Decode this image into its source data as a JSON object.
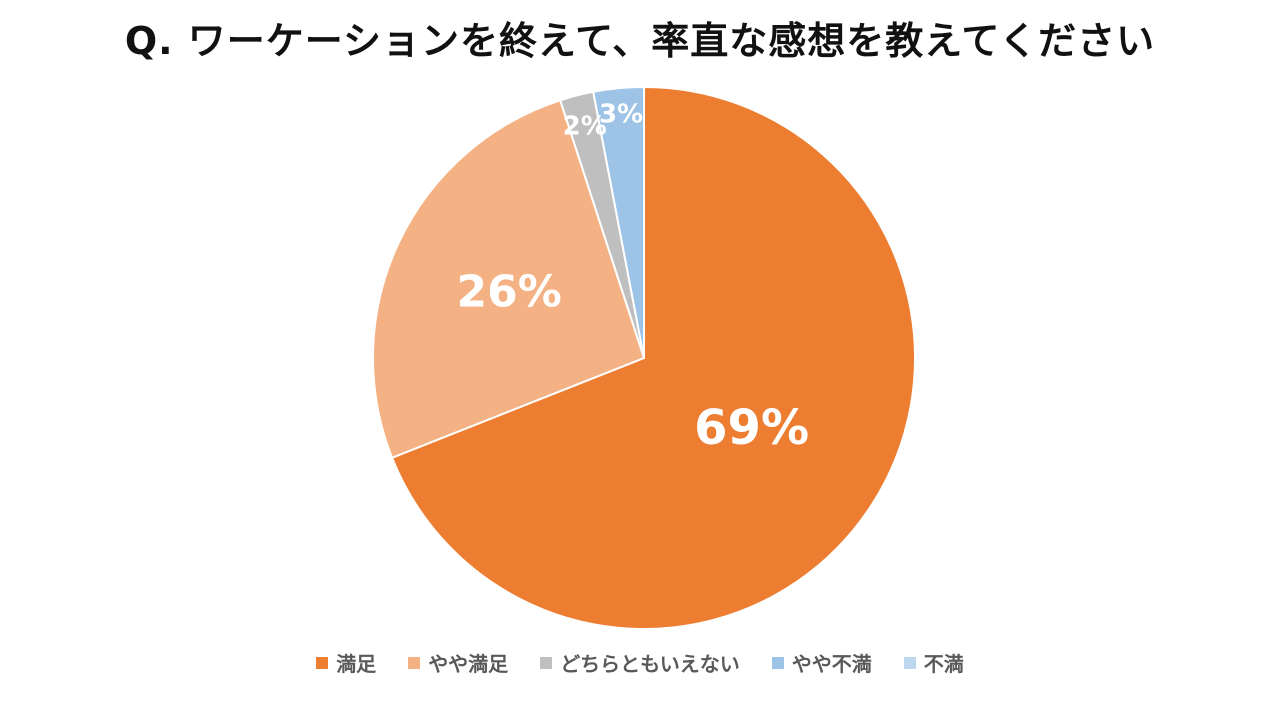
{
  "chart_data": {
    "type": "pie",
    "title": "Q. ワーケーションを終えて、率直な感想を教えてください",
    "categories": [
      "満足",
      "やや満足",
      "どちらともいえない",
      "やや不満",
      "不満"
    ],
    "values": [
      69,
      26,
      2,
      3,
      0
    ],
    "labels": [
      "69%",
      "26%",
      "2%",
      "3%",
      ""
    ],
    "colors": [
      "#ED7D31",
      "#F4B183",
      "#BFBFBF",
      "#9DC3E6",
      "#BDD7EE"
    ],
    "label_color": "#ffffff",
    "legend_position": "bottom"
  }
}
